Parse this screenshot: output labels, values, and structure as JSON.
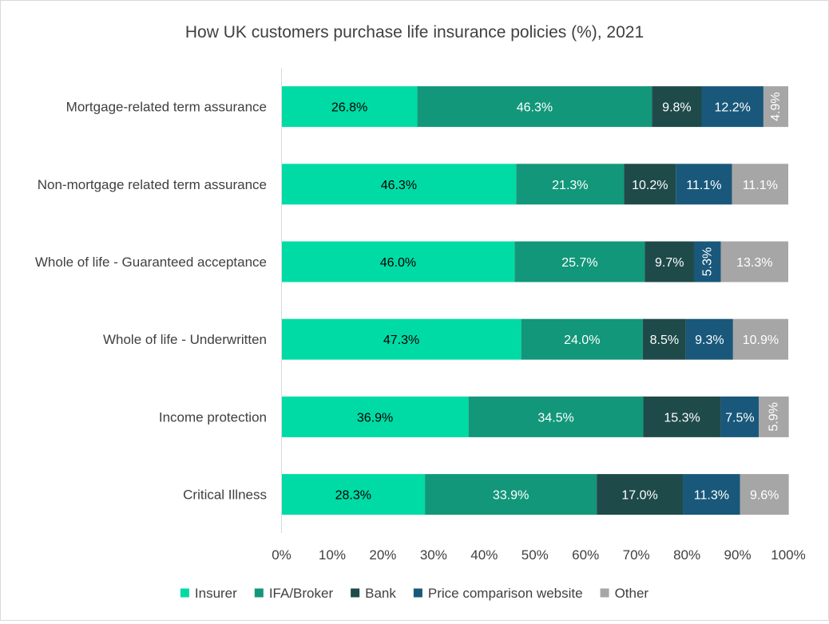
{
  "chart_data": {
    "type": "bar",
    "orientation": "horizontal",
    "stacked": "percent",
    "title": "How UK customers purchase life insurance policies (%), 2021",
    "xlabel": "",
    "ylabel": "",
    "xlim": [
      0,
      100
    ],
    "x_ticks": [
      "0%",
      "10%",
      "20%",
      "30%",
      "40%",
      "50%",
      "60%",
      "70%",
      "80%",
      "90%",
      "100%"
    ],
    "grid": false,
    "legend_position": "bottom",
    "categories": [
      "Mortgage-related term assurance",
      "Non-mortgage related term assurance",
      "Whole of life - Guaranteed acceptance",
      "Whole of life - Underwritten",
      "Income protection",
      "Critical Illness"
    ],
    "series": [
      {
        "name": "Insurer",
        "color": "#00dba5",
        "label_color": "#000000",
        "values": [
          26.8,
          46.3,
          46.0,
          47.3,
          36.9,
          28.3
        ],
        "labels": [
          "26.8%",
          "46.3%",
          "46.0%",
          "47.3%",
          "36.9%",
          "28.3%"
        ]
      },
      {
        "name": "IFA/Broker",
        "color": "#12977a",
        "label_color": "#ffffff",
        "values": [
          46.3,
          21.3,
          25.7,
          24.0,
          34.5,
          33.9
        ],
        "labels": [
          "46.3%",
          "21.3%",
          "25.7%",
          "24.0%",
          "34.5%",
          "33.9%"
        ]
      },
      {
        "name": "Bank",
        "color": "#1f4a4a",
        "label_color": "#ffffff",
        "values": [
          9.8,
          10.2,
          9.7,
          8.5,
          15.3,
          17.0
        ],
        "labels": [
          "9.8%",
          "10.2%",
          "9.7%",
          "8.5%",
          "15.3%",
          "17.0%"
        ]
      },
      {
        "name": "Price comparison website",
        "color": "#19587a",
        "label_color": "#ffffff",
        "values": [
          12.2,
          11.1,
          5.3,
          9.3,
          7.5,
          11.3
        ],
        "labels": [
          "12.2%",
          "11.1%",
          "5.3%",
          "9.3%",
          "7.5%",
          "11.3%"
        ]
      },
      {
        "name": "Other",
        "color": "#a6a6a6",
        "label_color": "#ffffff",
        "values": [
          4.9,
          11.1,
          13.3,
          10.9,
          5.9,
          9.6
        ],
        "labels": [
          "4.9%",
          "11.1%",
          "13.3%",
          "10.9%",
          "5.9%",
          "9.6%"
        ]
      }
    ]
  }
}
